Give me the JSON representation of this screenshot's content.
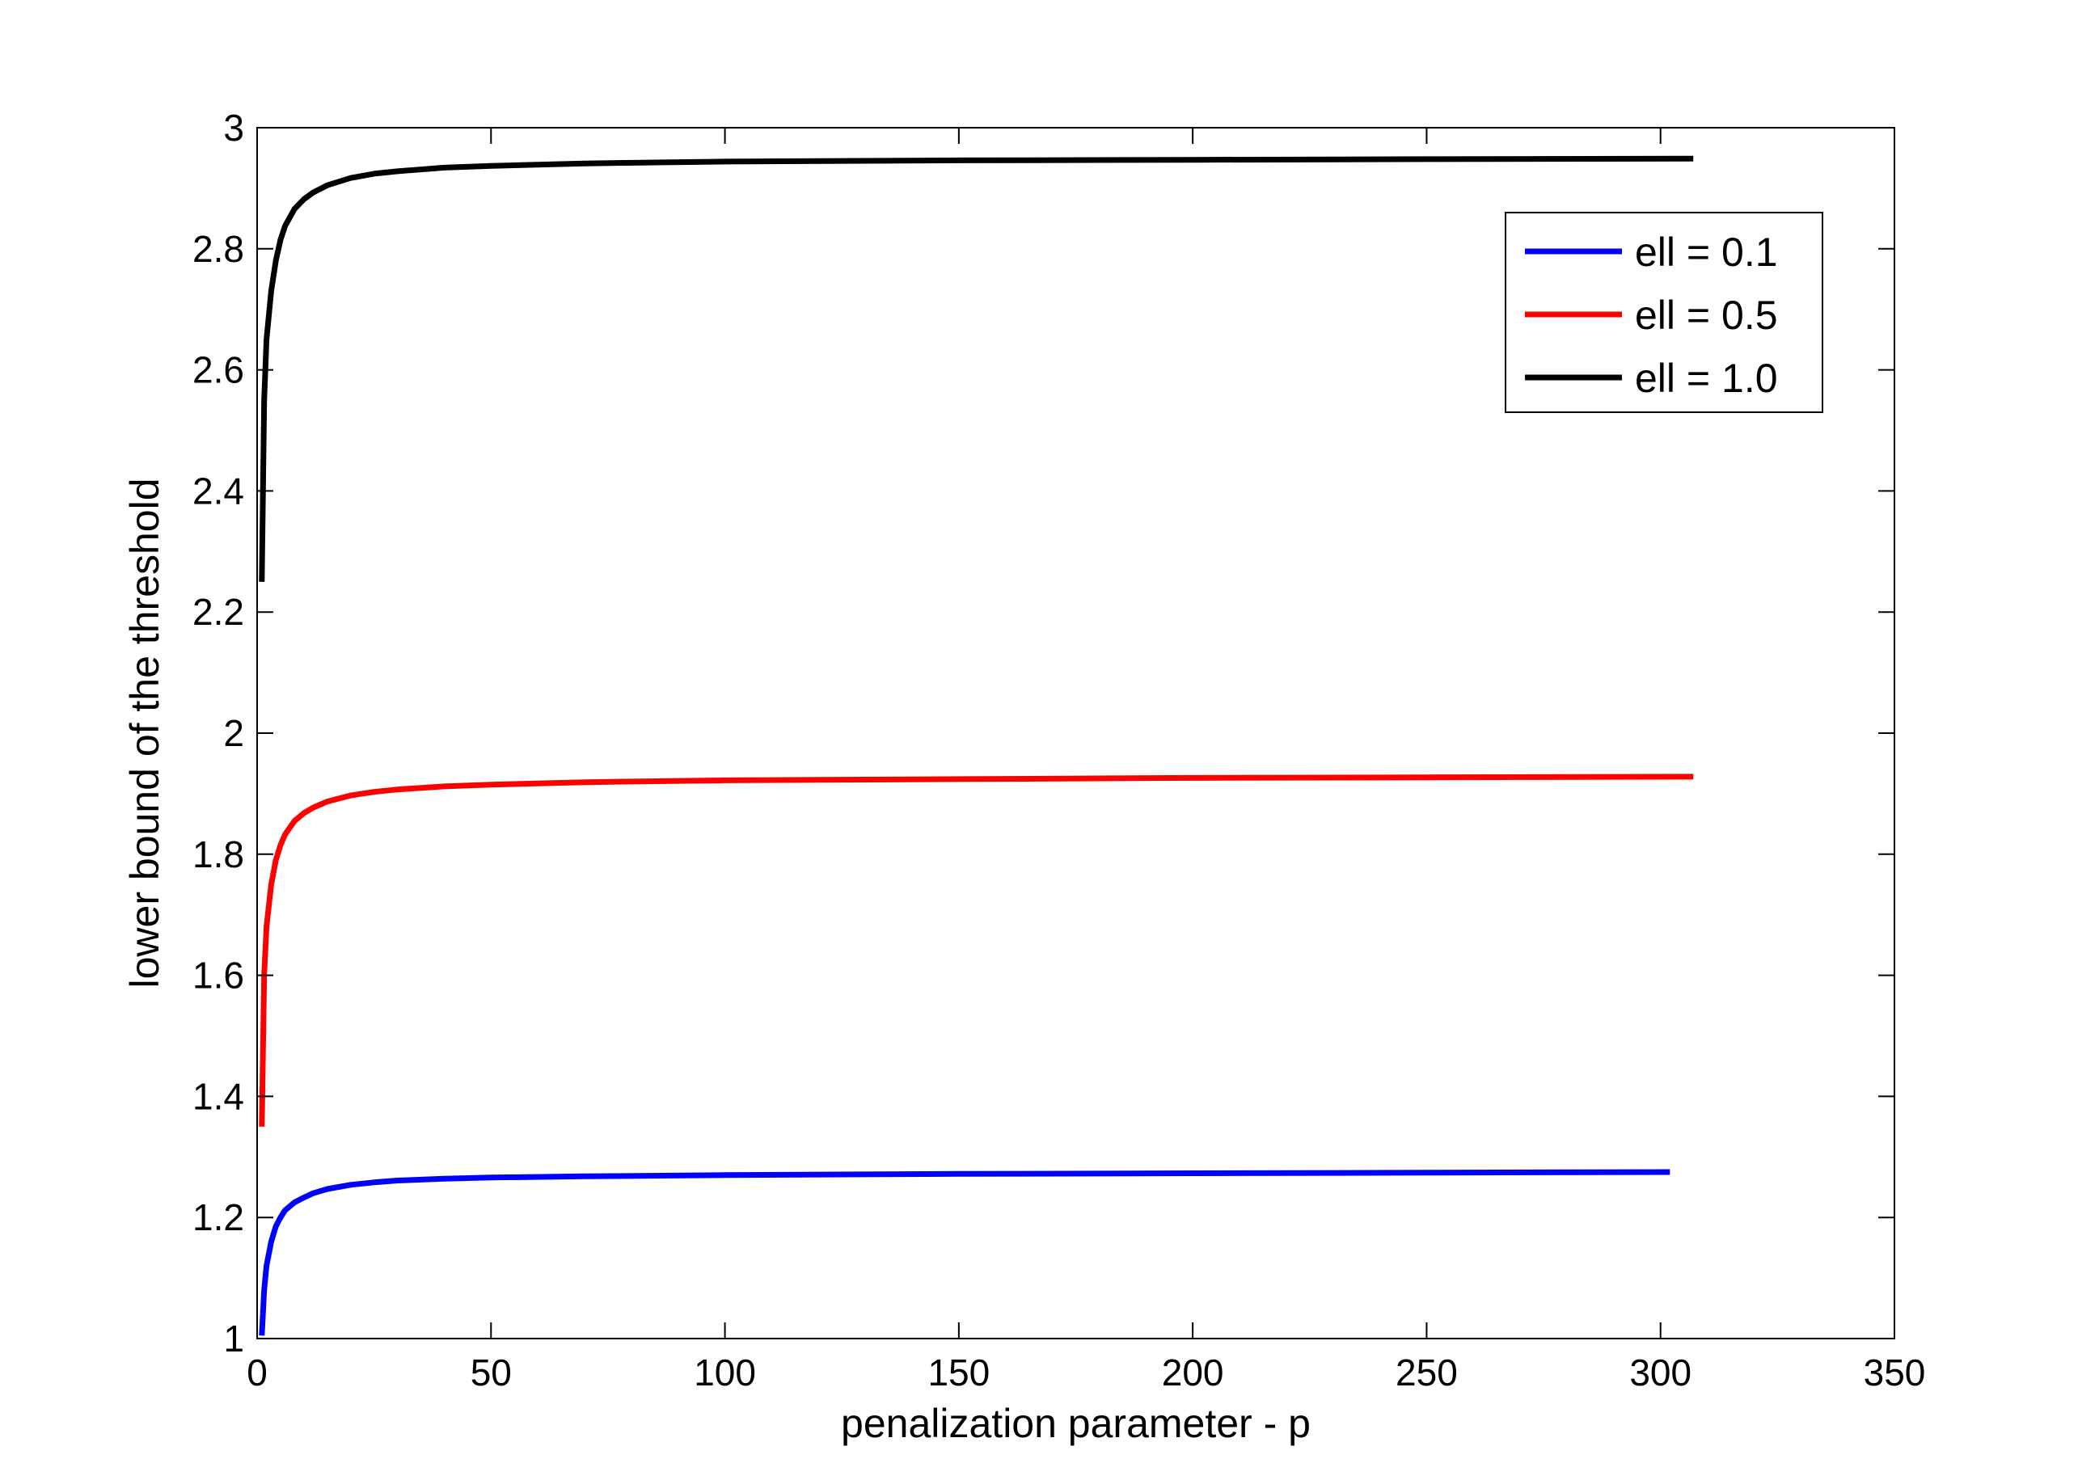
{
  "chart_data": {
    "type": "line",
    "title": "",
    "xlabel": "penalization parameter - p",
    "ylabel": "lower bound of the threshold",
    "xlim": [
      0,
      350
    ],
    "ylim": [
      1,
      3
    ],
    "xticks": [
      0,
      50,
      100,
      150,
      200,
      250,
      300,
      350
    ],
    "yticks": [
      1,
      1.2,
      1.4,
      1.6,
      1.8,
      2,
      2.2,
      2.4,
      2.6,
      2.8,
      3
    ],
    "grid": false,
    "legend_position": "top-right",
    "series": [
      {
        "name": "ell = 0.1",
        "color": "#0000ff",
        "x": [
          1,
          1.5,
          2,
          3,
          4,
          5,
          6,
          8,
          10,
          12,
          15,
          20,
          25,
          30,
          40,
          50,
          70,
          100,
          150,
          200,
          250,
          302
        ],
        "y": [
          1.005,
          1.08,
          1.12,
          1.16,
          1.185,
          1.2,
          1.212,
          1.225,
          1.233,
          1.24,
          1.247,
          1.254,
          1.258,
          1.261,
          1.264,
          1.266,
          1.268,
          1.27,
          1.272,
          1.273,
          1.274,
          1.275
        ]
      },
      {
        "name": "ell = 0.5",
        "color": "#ff0000",
        "x": [
          1,
          1.5,
          2,
          3,
          4,
          5,
          6,
          8,
          10,
          12,
          15,
          20,
          25,
          30,
          40,
          50,
          70,
          100,
          150,
          200,
          250,
          307
        ],
        "y": [
          1.35,
          1.6,
          1.68,
          1.75,
          1.79,
          1.815,
          1.833,
          1.855,
          1.868,
          1.877,
          1.887,
          1.897,
          1.903,
          1.907,
          1.912,
          1.915,
          1.919,
          1.922,
          1.924,
          1.926,
          1.927,
          1.928
        ]
      },
      {
        "name": "ell = 1.0",
        "color": "#000000",
        "x": [
          1,
          1.5,
          2,
          3,
          4,
          5,
          6,
          8,
          10,
          12,
          15,
          20,
          25,
          30,
          40,
          50,
          70,
          100,
          150,
          200,
          250,
          307
        ],
        "y": [
          2.25,
          2.55,
          2.65,
          2.73,
          2.78,
          2.815,
          2.838,
          2.866,
          2.882,
          2.893,
          2.905,
          2.917,
          2.924,
          2.928,
          2.934,
          2.937,
          2.941,
          2.944,
          2.946,
          2.947,
          2.948,
          2.949
        ]
      }
    ]
  }
}
